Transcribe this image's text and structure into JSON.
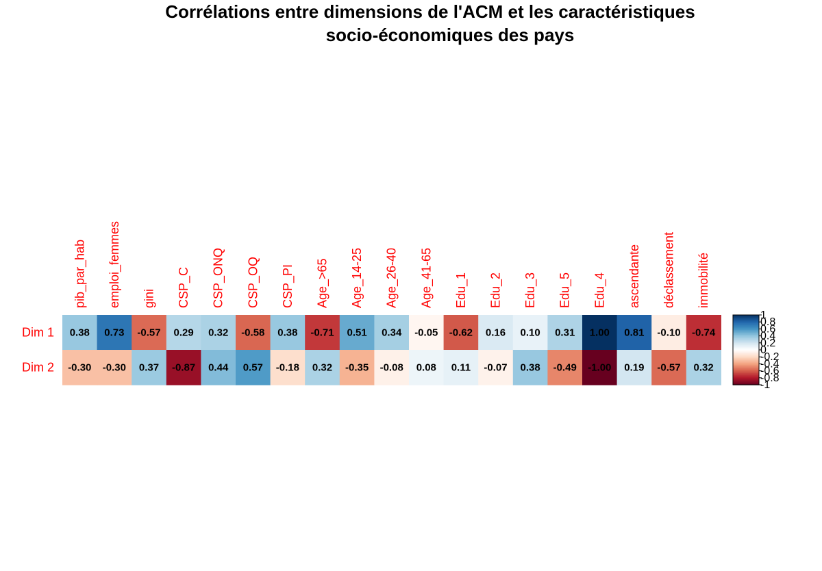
{
  "chart_data": {
    "type": "heatmap",
    "title_lines": [
      "Corrélations entre dimensions de l'ACM et les caractéristiques",
      "socio-économiques des pays"
    ],
    "columns": [
      "pib_par_hab",
      "emploi_femmes",
      "gini",
      "CSP_C",
      "CSP_ONQ",
      "CSP_OQ",
      "CSP_PI",
      "Age_>65",
      "Age_14-25",
      "Age_26-40",
      "Age_41-65",
      "Edu_1",
      "Edu_2",
      "Edu_3",
      "Edu_5",
      "Edu_4",
      "ascendante",
      "déclassement",
      "immobilité"
    ],
    "rows": [
      "Dim 1",
      "Dim 2"
    ],
    "values": [
      [
        0.38,
        0.73,
        -0.57,
        0.29,
        0.32,
        -0.58,
        0.38,
        -0.71,
        0.51,
        0.34,
        -0.05,
        -0.62,
        0.16,
        0.1,
        0.31,
        1.0,
        0.81,
        -0.1,
        -0.74
      ],
      [
        -0.3,
        -0.3,
        0.37,
        -0.87,
        0.44,
        0.57,
        -0.18,
        0.32,
        -0.35,
        -0.08,
        0.08,
        0.11,
        -0.07,
        0.38,
        -0.49,
        -1.0,
        0.19,
        -0.57,
        0.32
      ]
    ],
    "value_labels": [
      [
        "0.38",
        "0.73",
        "-0.57",
        "0.29",
        "0.32",
        "-0.58",
        "0.38",
        "-0.71",
        "0.51",
        "0.34",
        "-0.05",
        "-0.62",
        "0.16",
        "0.10",
        "0.31",
        "1.00",
        "0.81",
        "-0.10",
        "-0.74"
      ],
      [
        "-0.30",
        "-0.30",
        "0.37",
        "-0.87",
        "0.44",
        "0.57",
        "-0.18",
        "0.32",
        "-0.35",
        "-0.08",
        "0.08",
        "0.11",
        "-0.07",
        "0.38",
        "-0.49",
        "-1.00",
        "0.19",
        "-0.57",
        "0.32"
      ]
    ],
    "color_scale": {
      "range": [
        -1,
        1
      ],
      "palette": "RdBu",
      "stops": [
        "#67001F",
        "#B2182B",
        "#D6604D",
        "#F4A582",
        "#FDDBC7",
        "#FFFFFF",
        "#D1E5F0",
        "#92C5DE",
        "#4393C3",
        "#2166AC",
        "#053061"
      ]
    },
    "legend": {
      "placement": "right",
      "tick_values": [
        1,
        0.8,
        0.6,
        0.4,
        0.2,
        0,
        -0.2,
        -0.4,
        -0.6,
        -0.8,
        -1
      ],
      "tick_labels": [
        "1",
        "0.8",
        "0.6",
        "0.4",
        "0.2",
        "0",
        "-0.2",
        "-0.4",
        "-0.6",
        "-0.8",
        "-1"
      ]
    },
    "label_color": "#FF0000"
  }
}
